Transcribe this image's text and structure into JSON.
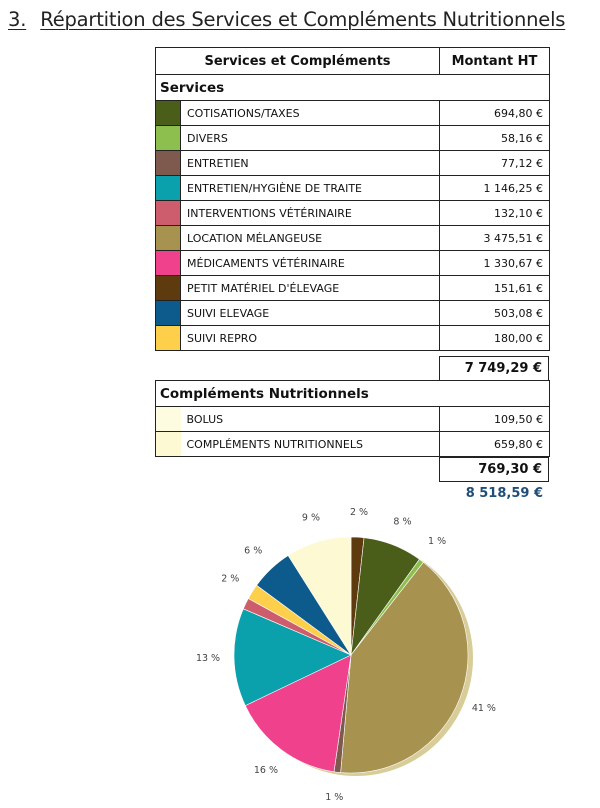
{
  "page": {
    "section_number": "3.",
    "section_title": "Répartition des Services et Compléments Nutritionnels"
  },
  "table": {
    "col_label": "Services et Compléments",
    "col_amount": "Montant HT",
    "groups": [
      {
        "title": "Services",
        "total": "7 749,29 €",
        "rows": [
          {
            "label": "COTISATIONS/TAXES",
            "amount": "694,80 €",
            "color": "#4a5e1a"
          },
          {
            "label": "DIVERS",
            "amount": "58,16 €",
            "color": "#8dbf4e"
          },
          {
            "label": "ENTRETIEN",
            "amount": "77,12 €",
            "color": "#7e5a4e"
          },
          {
            "label": "ENTRETIEN/HYGIÈNE DE TRAITE",
            "amount": "1 146,25 €",
            "color": "#0aa1ad"
          },
          {
            "label": "INTERVENTIONS VÉTÉRINAIRE",
            "amount": "132,10 €",
            "color": "#cd5c6c"
          },
          {
            "label": "LOCATION MÉLANGEUSE",
            "amount": "3 475,51 €",
            "color": "#a7924f"
          },
          {
            "label": "MÉDICAMENTS VÉTÉRINAIRE",
            "amount": "1 330,67 €",
            "color": "#f0418d"
          },
          {
            "label": "PETIT MATÉRIEL D'ÉLEVAGE",
            "amount": "151,61 €",
            "color": "#5e3a0f"
          },
          {
            "label": "SUIVI ELEVAGE",
            "amount": "503,08 €",
            "color": "#0d5b8c"
          },
          {
            "label": "SUIVI REPRO",
            "amount": "180,00 €",
            "color": "#fdcf4a"
          }
        ]
      },
      {
        "title": "Compléments Nutritionnels",
        "total": "769,30 €",
        "rows": [
          {
            "label": "BOLUS",
            "amount": "109,50 €",
            "color": "#fdfbe0"
          },
          {
            "label": "COMPLÉMENTS NUTRITIONNELS",
            "amount": "659,80 €",
            "color": "#fdf9d2"
          }
        ]
      }
    ],
    "grand_total": "8 518,59 €"
  },
  "chart_data": {
    "type": "pie",
    "title": "",
    "start_angle_deg": 0,
    "direction": "clockwise",
    "slices": [
      {
        "label": "2 %",
        "value": 1.78,
        "color": "#5e3a0f",
        "series": "PETIT MATÉRIEL D'ÉLEVAGE"
      },
      {
        "label": "8 %",
        "value": 8.16,
        "color": "#4a5e1a",
        "series": "COTISATIONS/TAXES"
      },
      {
        "label": "1 %",
        "value": 0.68,
        "color": "#8dbf4e",
        "series": "DIVERS"
      },
      {
        "label": "41 %",
        "value": 40.8,
        "color": "#a7924f",
        "series": "LOCATION MÉLANGEUSE"
      },
      {
        "label": "1 %",
        "value": 0.91,
        "color": "#7e5a4e",
        "series": "ENTRETIEN"
      },
      {
        "label": "16 %",
        "value": 15.62,
        "color": "#f0418d",
        "series": "MÉDICAMENTS VÉTÉRINAIRE"
      },
      {
        "label": "13 %",
        "value": 13.46,
        "color": "#0aa1ad",
        "series": "ENTRETIEN/HYGIÈNE DE TRAITE"
      },
      {
        "label": "",
        "value": 1.55,
        "color": "#cd5c6c",
        "series": "INTERVENTIONS VÉTÉRINAIRE"
      },
      {
        "label": "2 %",
        "value": 2.11,
        "color": "#fdcf4a",
        "series": "SUIVI REPRO"
      },
      {
        "label": "6 %",
        "value": 5.91,
        "color": "#0d5b8c",
        "series": "SUIVI ELEVAGE"
      },
      {
        "label": "9 %",
        "value": 9.03,
        "color": "#fdf9d2",
        "series": "COMPLÉMENTS NUTRITIONNELS"
      }
    ]
  }
}
